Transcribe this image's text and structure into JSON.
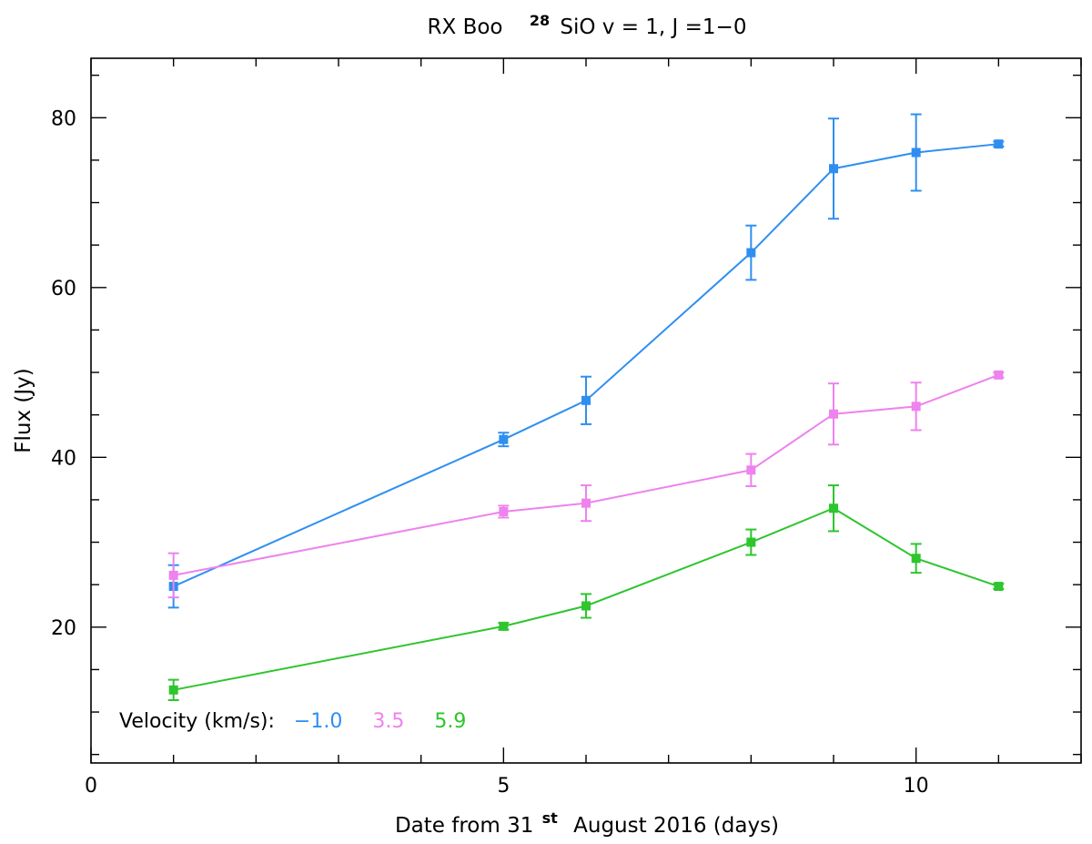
{
  "chart_data": {
    "type": "line",
    "title": {
      "prefix": "RX Boo",
      "isotope_superscript": "28",
      "suffix": "SiO v = 1, J =1−0"
    },
    "xlabel": {
      "prefix": "Date from 31",
      "superscript": "st",
      "suffix": "August 2016 (days)"
    },
    "ylabel": "Flux (Jy)",
    "xlim": [
      0,
      12
    ],
    "ylim": [
      4,
      87
    ],
    "x_ticks_labeled": [
      0,
      5,
      10
    ],
    "x_tick_labels": [
      "0",
      "5",
      "10"
    ],
    "y_ticks_labeled": [
      20,
      40,
      60,
      80
    ],
    "y_tick_labels": [
      "20",
      "40",
      "60",
      "80"
    ],
    "grid": false,
    "legend": {
      "title": "Velocity (km/s):",
      "placement": "bottom-left",
      "entries": [
        "−1.0",
        "3.5",
        "5.9"
      ]
    },
    "series": [
      {
        "name": "−1.0",
        "color": "#2f8ff0",
        "x": [
          1,
          5,
          6,
          8,
          9,
          10,
          11
        ],
        "values": [
          24.8,
          42.1,
          46.7,
          64.1,
          74.0,
          75.9,
          76.9
        ],
        "errors": [
          2.5,
          0.8,
          2.8,
          3.2,
          5.9,
          4.5,
          0.3
        ]
      },
      {
        "name": "3.5",
        "color": "#ee82ee",
        "x": [
          1,
          5,
          6,
          8,
          9,
          10,
          11
        ],
        "values": [
          26.1,
          33.6,
          34.6,
          38.5,
          45.1,
          46.0,
          49.7
        ],
        "errors": [
          2.6,
          0.7,
          2.1,
          1.9,
          3.6,
          2.8,
          0.3
        ]
      },
      {
        "name": "5.9",
        "color": "#2ec52e",
        "x": [
          1,
          5,
          6,
          8,
          9,
          10,
          11
        ],
        "values": [
          12.6,
          20.1,
          22.5,
          30.0,
          34.0,
          28.1,
          24.8
        ],
        "errors": [
          1.2,
          0.4,
          1.4,
          1.5,
          2.7,
          1.7,
          0.3
        ]
      }
    ]
  }
}
